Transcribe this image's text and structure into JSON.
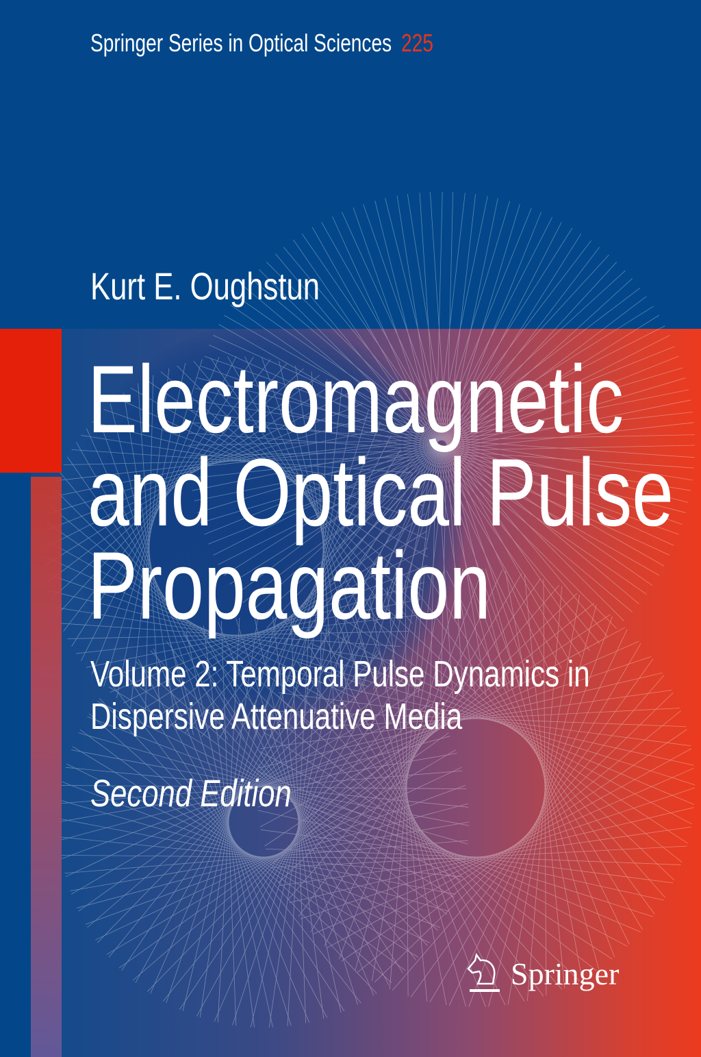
{
  "series": {
    "name": "Springer Series in Optical Sciences",
    "number": "225"
  },
  "author": "Kurt E. Oughstun",
  "title": [
    "Electromagnetic",
    "and Optical Pulse",
    "Propagation"
  ],
  "subtitle": [
    "Volume 2: Temporal Pulse Dynamics in",
    "Dispersive Attenuative Media"
  ],
  "edition": "Second Edition",
  "publisher": {
    "name": "Springer",
    "icon": "knight-horse-icon"
  },
  "colors": {
    "blue": "#03478a",
    "red": "#e4200b",
    "series_number": "#e8341c"
  }
}
